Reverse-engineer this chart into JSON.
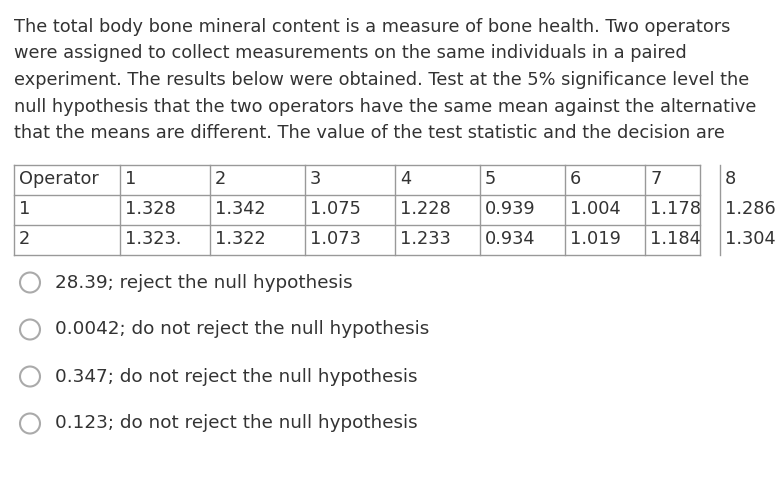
{
  "para_lines": [
    "The total body bone mineral content is a measure of bone health. Two operators",
    "were assigned to collect measurements on the same individuals in a paired",
    "experiment. The results below were obtained. Test at the 5% significance level the",
    "null hypothesis that the two operators have the same mean against the alternative",
    "that the means are different. The value of the test statistic and the decision are"
  ],
  "table_headers": [
    "Operator",
    "1",
    "2",
    "3",
    "4",
    "5",
    "6",
    "7",
    "8"
  ],
  "table_row1": [
    "1",
    "1.328",
    "1.342",
    "1.075",
    "1.228",
    "0.939",
    "1.004",
    "1.178",
    "1.286"
  ],
  "table_row2": [
    "2",
    "1.323.",
    "1.322",
    "1.073",
    "1.233",
    "0.934",
    "1.019",
    "1.184",
    "1.304"
  ],
  "options": [
    "28.39; reject the null hypothesis",
    "0.0042; do not reject the null hypothesis",
    "0.347; do not reject the null hypothesis",
    "0.123; do not reject the null hypothesis"
  ],
  "bg_color": "#ffffff",
  "text_color": "#333333",
  "line_color": "#999999",
  "font_size_para": 12.8,
  "font_size_table": 12.8,
  "font_size_options": 13.2,
  "circle_color": "#aaaaaa"
}
